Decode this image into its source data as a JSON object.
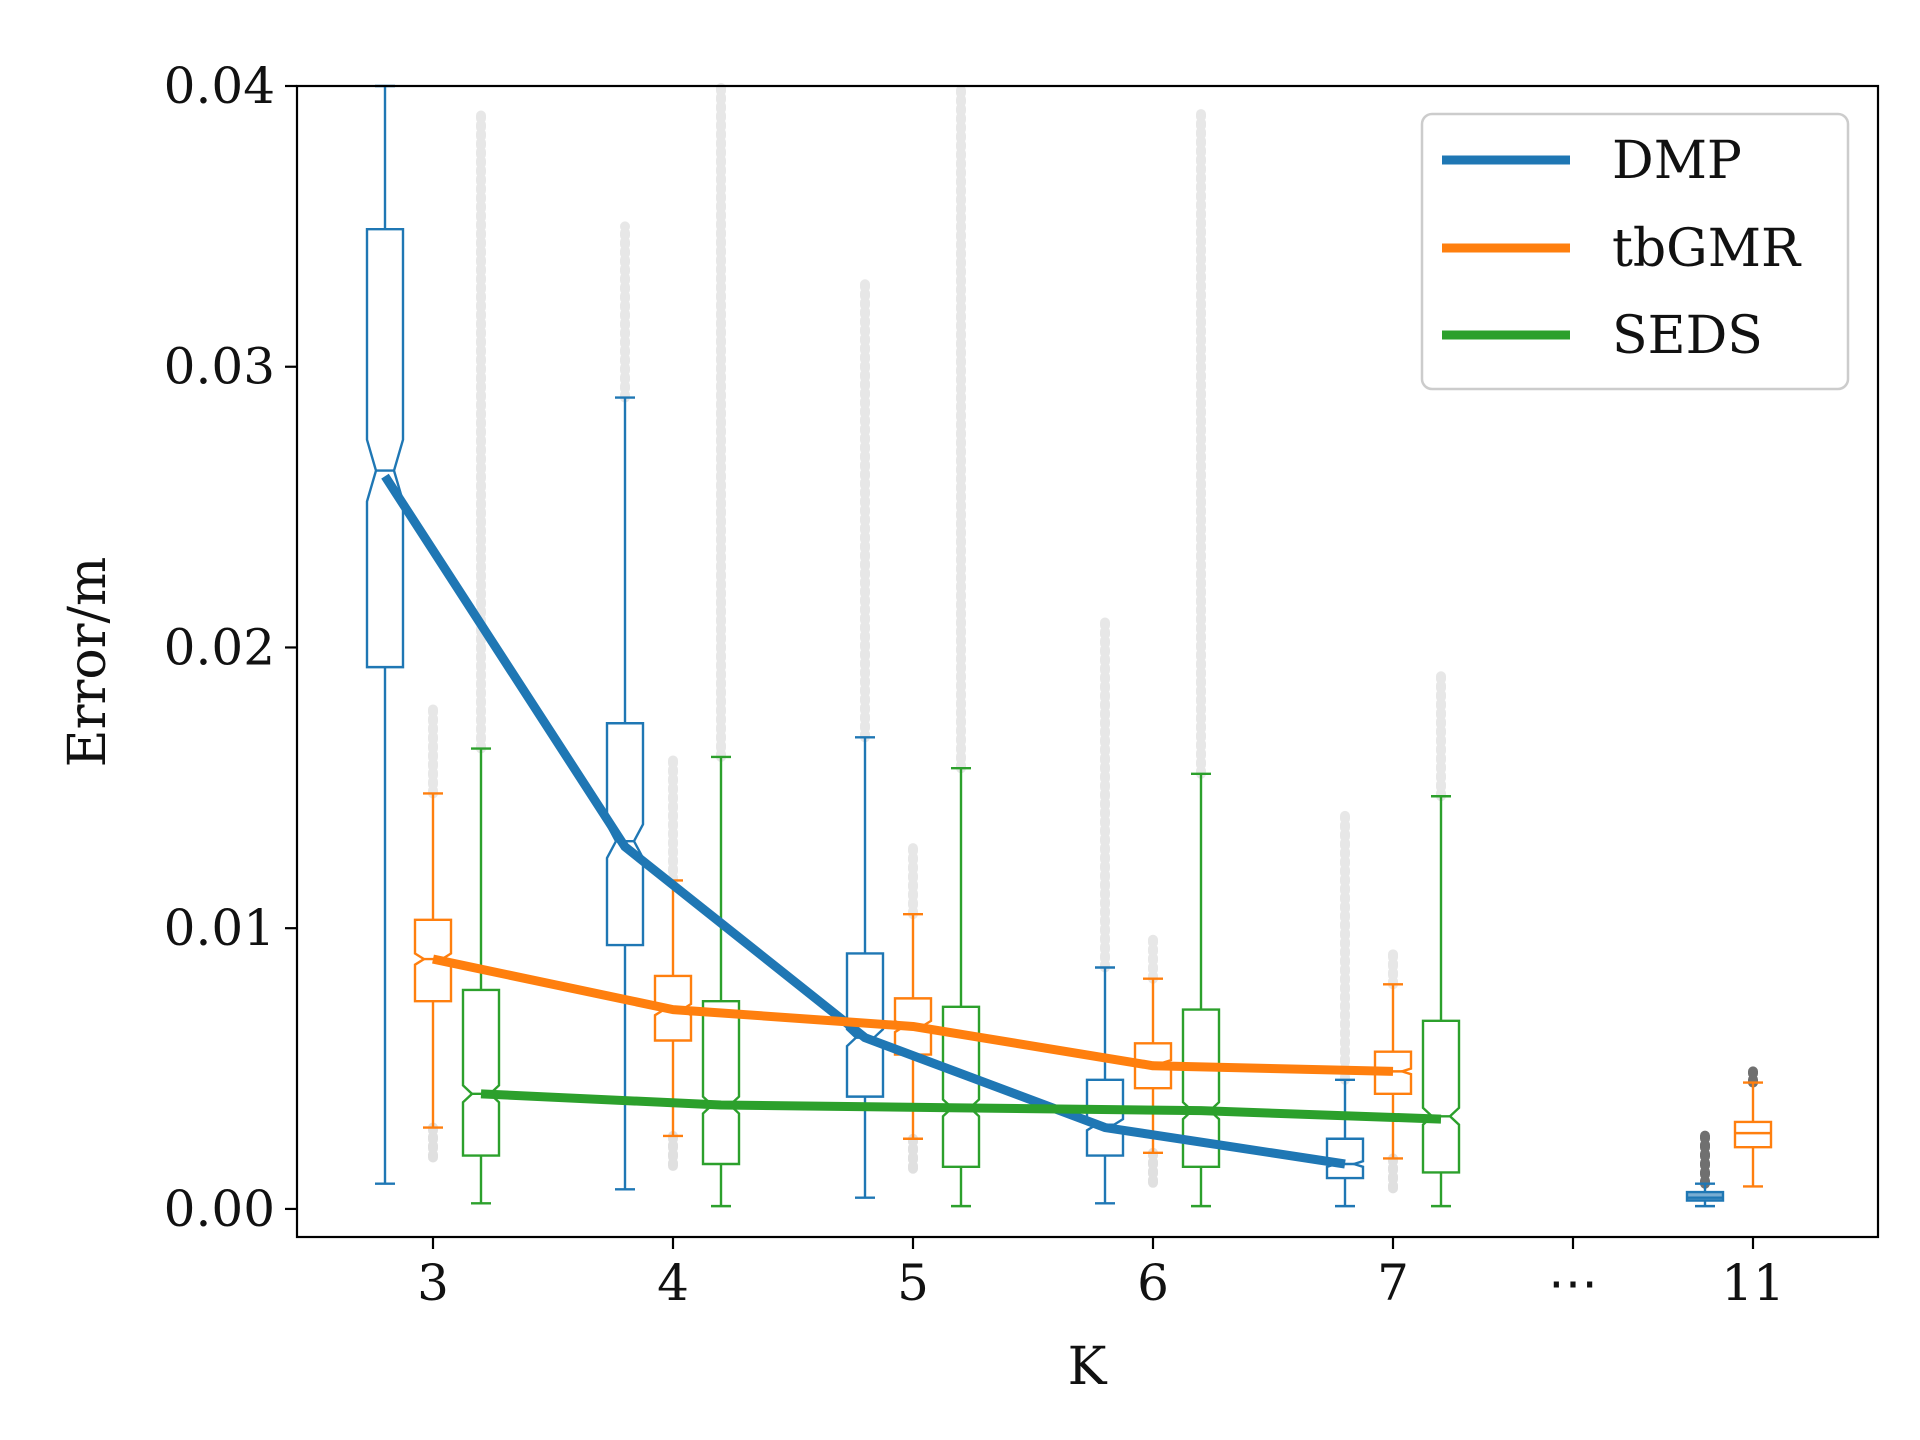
{
  "chart_data": {
    "type": "box",
    "title": "",
    "xlabel": "K",
    "ylabel": "Error/m",
    "ylim": [
      -0.001,
      0.04
    ],
    "yticks": [
      "0.00",
      "0.01",
      "0.02",
      "0.03",
      "0.04"
    ],
    "ytick_values": [
      0,
      0.01,
      0.02,
      0.03,
      0.04
    ],
    "xtick_labels": [
      "3",
      "4",
      "5",
      "6",
      "7",
      "⋯",
      "11"
    ],
    "legend_position": "top-right",
    "series": [
      {
        "name": "DMP",
        "color": "#1f77b4",
        "boxes": [
          {
            "k": "3",
            "whisker_low": 0.0009,
            "q1": 0.0193,
            "median": 0.0263,
            "q3": 0.0349,
            "whisker_high": 0.04,
            "outlier_max": null,
            "notch": 0.0011
          },
          {
            "k": "4",
            "whisker_low": 0.0007,
            "q1": 0.0094,
            "median": 0.0131,
            "q3": 0.0173,
            "whisker_high": 0.0289,
            "outlier_max": 0.035,
            "notch": 0.0006
          },
          {
            "k": "5",
            "whisker_low": 0.0004,
            "q1": 0.004,
            "median": 0.0061,
            "q3": 0.0091,
            "whisker_high": 0.0168,
            "outlier_max": 0.033,
            "notch": 0.0003
          },
          {
            "k": "6",
            "whisker_low": 0.0002,
            "q1": 0.0019,
            "median": 0.003,
            "q3": 0.0046,
            "whisker_high": 0.0086,
            "outlier_max": 0.021,
            "notch": 0.0002
          },
          {
            "k": "7",
            "whisker_low": 0.0001,
            "q1": 0.0011,
            "median": 0.0016,
            "q3": 0.0025,
            "whisker_high": 0.0046,
            "outlier_max": 0.014,
            "notch": 0.0001
          },
          {
            "k": "11",
            "whisker_low": 0.0001,
            "q1": 0.0003,
            "median": 0.0004,
            "q3": 0.0006,
            "whisker_high": 0.0009,
            "outlier_max": 0.0027,
            "notch": 0.0
          }
        ],
        "trend": [
          0.0261,
          0.0129,
          0.0061,
          0.0029,
          0.0016
        ]
      },
      {
        "name": "tbGMR",
        "color": "#ff7f0e",
        "boxes": [
          {
            "k": "3",
            "whisker_low": 0.0029,
            "q1": 0.0074,
            "median": 0.0089,
            "q3": 0.0103,
            "whisker_high": 0.0148,
            "outlier_max": 0.018,
            "notch": 0.0002
          },
          {
            "k": "4",
            "whisker_low": 0.0026,
            "q1": 0.006,
            "median": 0.0071,
            "q3": 0.0083,
            "whisker_high": 0.0117,
            "outlier_max": 0.016,
            "notch": 0.0002
          },
          {
            "k": "5",
            "whisker_low": 0.0025,
            "q1": 0.0055,
            "median": 0.0065,
            "q3": 0.0075,
            "whisker_high": 0.0105,
            "outlier_max": 0.013,
            "notch": 0.0002
          },
          {
            "k": "6",
            "whisker_low": 0.002,
            "q1": 0.0043,
            "median": 0.0052,
            "q3": 0.0059,
            "whisker_high": 0.0082,
            "outlier_max": 0.0098,
            "notch": 0.0001
          },
          {
            "k": "7",
            "whisker_low": 0.0018,
            "q1": 0.0041,
            "median": 0.0049,
            "q3": 0.0056,
            "whisker_high": 0.008,
            "outlier_max": 0.0092,
            "notch": 0.0001
          },
          {
            "k": "11",
            "whisker_low": 0.0008,
            "q1": 0.0022,
            "median": 0.0027,
            "q3": 0.0031,
            "whisker_high": 0.0045,
            "outlier_max": 0.0049,
            "notch": 0.0
          }
        ],
        "trend": [
          0.0089,
          0.0071,
          0.0065,
          0.0051,
          0.0049
        ]
      },
      {
        "name": "SEDS",
        "color": "#2ca02c",
        "boxes": [
          {
            "k": "3",
            "whisker_low": 0.0002,
            "q1": 0.0019,
            "median": 0.0041,
            "q3": 0.0078,
            "whisker_high": 0.0164,
            "outlier_max": 0.039,
            "notch": 0.0003
          },
          {
            "k": "4",
            "whisker_low": 0.0001,
            "q1": 0.0016,
            "median": 0.0037,
            "q3": 0.0074,
            "whisker_high": 0.0161,
            "outlier_max": 0.04,
            "notch": 0.0003
          },
          {
            "k": "5",
            "whisker_low": 0.0001,
            "q1": 0.0015,
            "median": 0.0036,
            "q3": 0.0072,
            "whisker_high": 0.0157,
            "outlier_max": 0.04,
            "notch": 0.0003
          },
          {
            "k": "6",
            "whisker_low": 0.0001,
            "q1": 0.0015,
            "median": 0.0035,
            "q3": 0.0071,
            "whisker_high": 0.0155,
            "outlier_max": 0.039,
            "notch": 0.0003
          },
          {
            "k": "7",
            "whisker_low": 0.0001,
            "q1": 0.0013,
            "median": 0.0033,
            "q3": 0.0067,
            "whisker_high": 0.0147,
            "outlier_max": 0.019,
            "notch": 0.0003
          }
        ],
        "trend": [
          0.0041,
          0.0037,
          0.0036,
          0.0035,
          0.0032
        ]
      }
    ]
  }
}
